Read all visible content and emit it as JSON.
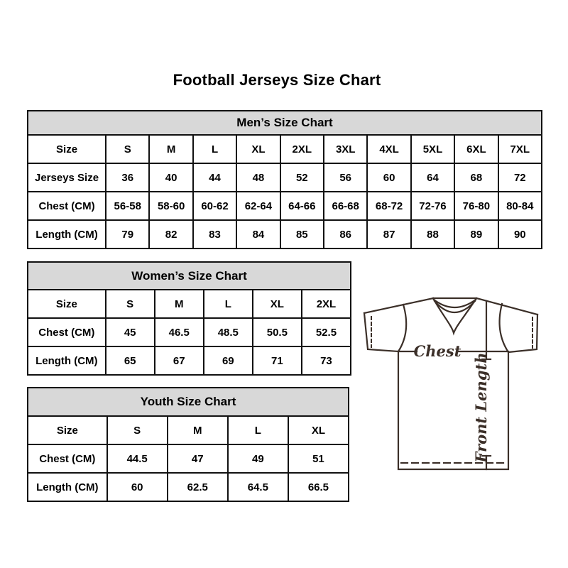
{
  "page": {
    "title": "Football Jerseys Size Chart"
  },
  "tables": {
    "men": {
      "title": "Men’s Size Chart",
      "rows": [
        {
          "label": "Size",
          "values": [
            "S",
            "M",
            "L",
            "XL",
            "2XL",
            "3XL",
            "4XL",
            "5XL",
            "6XL",
            "7XL"
          ]
        },
        {
          "label": "Jerseys Size",
          "values": [
            "36",
            "40",
            "44",
            "48",
            "52",
            "56",
            "60",
            "64",
            "68",
            "72"
          ]
        },
        {
          "label": "Chest (CM)",
          "values": [
            "56-58",
            "58-60",
            "60-62",
            "62-64",
            "64-66",
            "66-68",
            "68-72",
            "72-76",
            "76-80",
            "80-84"
          ]
        },
        {
          "label": "Length (CM)",
          "values": [
            "79",
            "82",
            "83",
            "84",
            "85",
            "86",
            "87",
            "88",
            "89",
            "90"
          ]
        }
      ]
    },
    "women": {
      "title": "Women’s Size Chart",
      "rows": [
        {
          "label": "Size",
          "values": [
            "S",
            "M",
            "L",
            "XL",
            "2XL"
          ]
        },
        {
          "label": "Chest (CM)",
          "values": [
            "45",
            "46.5",
            "48.5",
            "50.5",
            "52.5"
          ]
        },
        {
          "label": "Length (CM)",
          "values": [
            "65",
            "67",
            "69",
            "71",
            "73"
          ]
        }
      ]
    },
    "youth": {
      "title": "Youth Size Chart",
      "rows": [
        {
          "label": "Size",
          "values": [
            "S",
            "M",
            "L",
            "XL"
          ]
        },
        {
          "label": "Chest (CM)",
          "values": [
            "44.5",
            "47",
            "49",
            "51"
          ]
        },
        {
          "label": "Length (CM)",
          "values": [
            "60",
            "62.5",
            "64.5",
            "66.5"
          ]
        }
      ]
    }
  },
  "diagram": {
    "chest_label": "Chest",
    "front_length_label": "Front Length"
  },
  "colors": {
    "table_border": "#111111",
    "header_bg": "#d8d8d8",
    "text": "#000000",
    "jersey_line": "#3b2f28"
  }
}
